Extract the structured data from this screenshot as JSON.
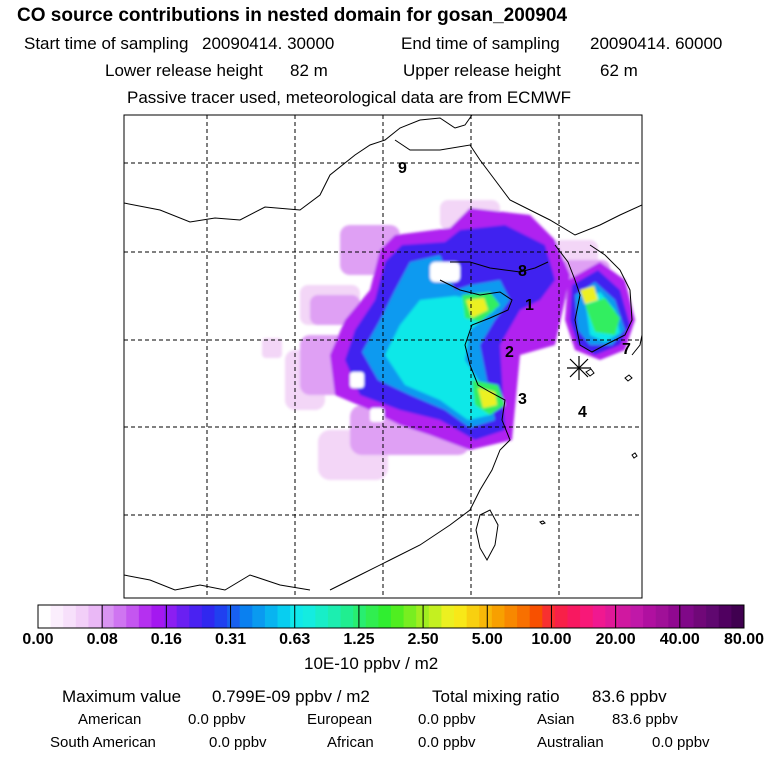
{
  "title": "CO  source contributions in nested domain for gosan_200904",
  "sampling": {
    "start_label": "Start time of sampling",
    "start_value": "20090414. 30000",
    "end_label": "End time of sampling",
    "end_value": "20090414. 60000"
  },
  "release": {
    "lower_label": "Lower release height",
    "lower_value": "82 m",
    "upper_label": "Upper release height",
    "upper_value": "62 m"
  },
  "note": "Passive tracer used, meteorological data are from ECMWF",
  "map": {
    "region_labels": [
      "1",
      "2",
      "3",
      "4",
      "7",
      "8",
      "9"
    ],
    "receptor_marker": "asterisk",
    "plume_colors": [
      "#f3d6f7",
      "#d98cf2",
      "#b020f0",
      "#4020f0",
      "#0a7cf0",
      "#10e8e8",
      "#30ee60",
      "#ecf020"
    ]
  },
  "colorbar": {
    "tick_labels": [
      "0.00",
      "0.08",
      "0.16",
      "0.31",
      "0.63",
      "1.25",
      "2.50",
      "5.00",
      "10.00",
      "20.00",
      "40.00",
      "80.00"
    ],
    "colors": [
      "#ffffff",
      "#fbeefd",
      "#f7e0fb",
      "#f2cff8",
      "#eab8f6",
      "#d994f2",
      "#cf75f1",
      "#c456f0",
      "#b530f0",
      "#a418f0",
      "#8c1ef2",
      "#6a20f2",
      "#4a22f2",
      "#3028f0",
      "#2040f0",
      "#1860f0",
      "#0a80f0",
      "#0a9af0",
      "#08b4f0",
      "#08cef0",
      "#10e8ea",
      "#14ece0",
      "#18eec8",
      "#1ceeb0",
      "#20ee90",
      "#28ee70",
      "#30ee50",
      "#30ee30",
      "#50ee20",
      "#78ee20",
      "#a0ee20",
      "#c4f020",
      "#ecf020",
      "#f8e818",
      "#f8d010",
      "#f8b808",
      "#f8a000",
      "#f88800",
      "#f87000",
      "#f85000",
      "#f83030",
      "#f82048",
      "#f81860",
      "#f81878",
      "#f01890",
      "#e01898",
      "#d018a0",
      "#c018a8",
      "#b010a0",
      "#a01098",
      "#900890",
      "#800888",
      "#700878",
      "#600870",
      "#500060",
      "#400050"
    ],
    "unit": "10E-10 ppbv / m2"
  },
  "stats": {
    "max_label": "Maximum value",
    "max_value": "0.799E-09 ppbv / m2",
    "total_label": "Total mixing ratio",
    "total_value": "83.6 ppbv",
    "regions": [
      {
        "name": "American",
        "value": "0.0 ppbv"
      },
      {
        "name": "European",
        "value": "0.0 ppbv"
      },
      {
        "name": "Asian",
        "value": "83.6 ppbv"
      },
      {
        "name": "South American",
        "value": "0.0 ppbv"
      },
      {
        "name": "African",
        "value": "0.0 ppbv"
      },
      {
        "name": "Australian",
        "value": "0.0 ppbv"
      }
    ]
  }
}
